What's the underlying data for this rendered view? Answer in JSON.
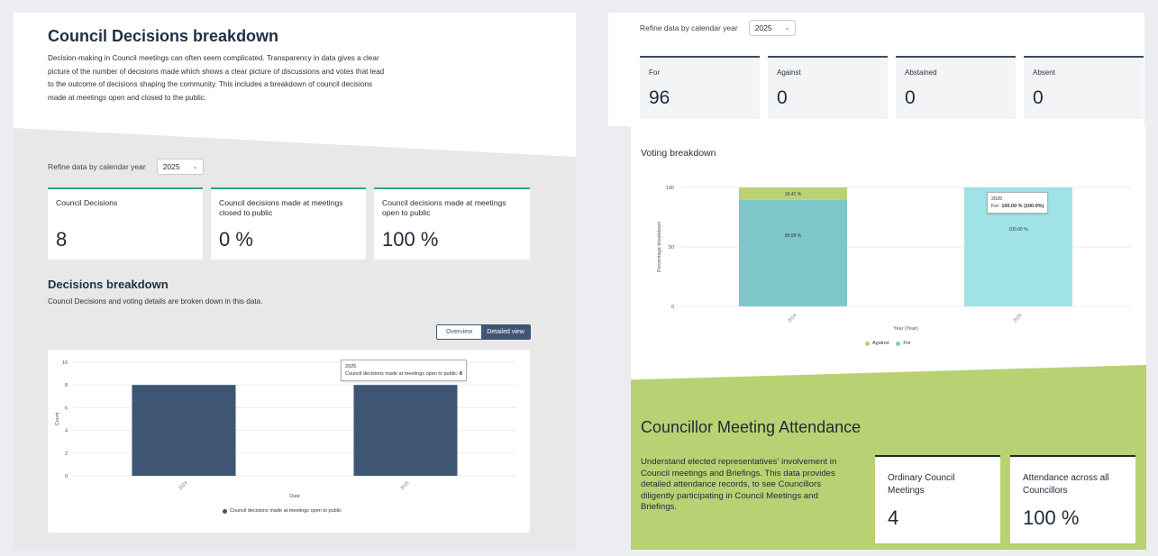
{
  "left": {
    "title": "Council Decisions breakdown",
    "description": "Decision-making in Council meetings can often seem complicated. Transparency in data gives a clear picture of the number of decisions made which shows a clear picture of discussions and votes that lead to the outcome of decisions shaping the community. This includes a breakdown of council decisions made at meetings open and closed to the public.",
    "refine_label": "Refine data by calendar year",
    "year": "2025",
    "cards": [
      {
        "label": "Council Decisions",
        "value": "8"
      },
      {
        "label": "Council decisions made at meetings closed to public",
        "value": "0 %"
      },
      {
        "label": "Council decisions made at meetings open to public",
        "value": "100 %"
      }
    ],
    "section_title": "Decisions breakdown",
    "section_subtitle": "Council Decisions and voting details are broken down in this data.",
    "toggle": {
      "overview": "Overview",
      "detailed": "Detailed view"
    },
    "tooltip": {
      "year": "2025",
      "text": "Council decisions made at meetings open to public:",
      "value": "8"
    }
  },
  "right": {
    "refine_label": "Refine data by calendar year",
    "year": "2025",
    "vote_cards": [
      {
        "label": "For",
        "value": "96"
      },
      {
        "label": "Against",
        "value": "0"
      },
      {
        "label": "Abstained",
        "value": "0"
      },
      {
        "label": "Absent",
        "value": "0"
      }
    ],
    "voting_title": "Voting breakdown",
    "tooltip": {
      "year": "2025",
      "text": "For:",
      "value": "100.00 % (100.0%)"
    },
    "attendance_title": "Councillor Meeting Attendance",
    "attendance_desc": "Understand elected representatives' involvement in Council meetings and Briefings. This data provides detailed attendance records, to see Councillors diligently participating in Council Meetings and Briefings.",
    "attendance_cards": [
      {
        "label": "Ordinary Council Meetings",
        "value": "4"
      },
      {
        "label": "Attendance across all Councillors",
        "value": "100 %"
      }
    ]
  },
  "chart_data": [
    {
      "type": "bar",
      "categories": [
        "2024",
        "2025"
      ],
      "series": [
        {
          "name": "Council decisions made at meetings open to public",
          "values": [
            8,
            8
          ],
          "color": "#3e5573"
        }
      ],
      "xlabel": "Date",
      "ylabel": "Count",
      "ylim": [
        0,
        10
      ],
      "yticks": [
        0,
        2,
        4,
        6,
        8,
        10
      ],
      "grid": true,
      "legend": "bottom"
    },
    {
      "type": "bar",
      "stacked": true,
      "categories": [
        "2024",
        "2025"
      ],
      "series": [
        {
          "name": "Against",
          "values": [
            10.42,
            0
          ],
          "labels": [
            "10.42 %",
            ""
          ],
          "color": "#b8d173"
        },
        {
          "name": "For",
          "values": [
            89.58,
            100
          ],
          "labels": [
            "89.58 %",
            "100.00 %"
          ],
          "colors": [
            "#7ec7c9",
            "#9fe3e6"
          ]
        }
      ],
      "xlabel": "Year (Year)",
      "ylabel": "Percentage breakdown",
      "ylim": [
        0,
        100
      ],
      "yticks": [
        0,
        50,
        100
      ],
      "grid": true,
      "legend": "bottom"
    }
  ]
}
